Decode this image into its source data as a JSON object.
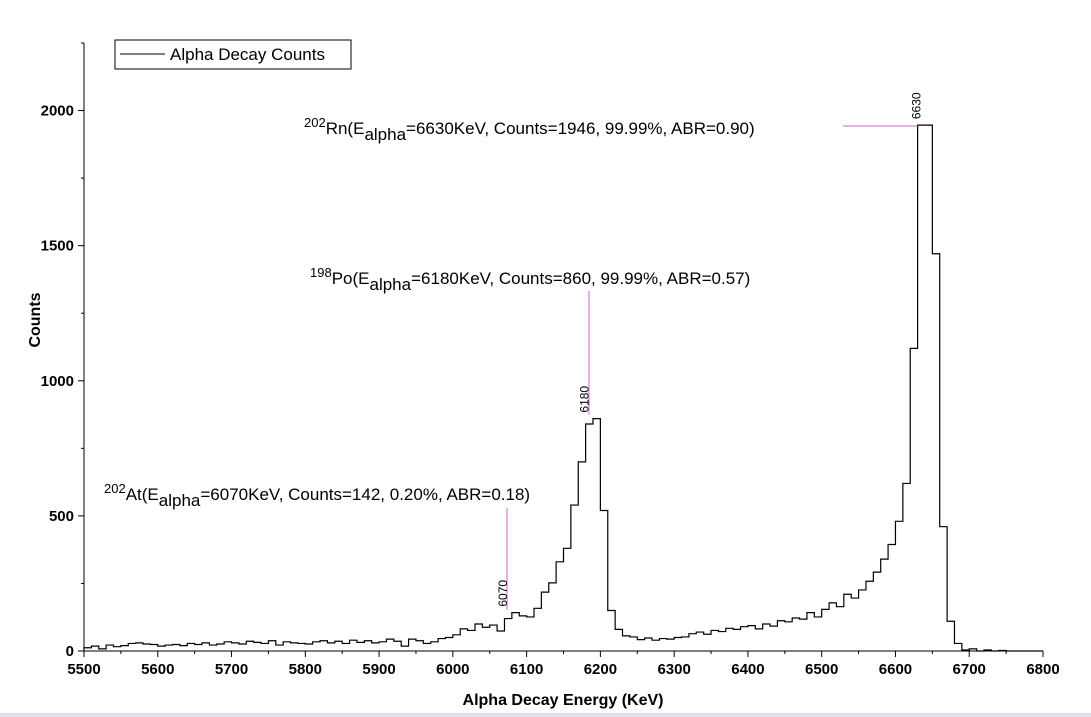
{
  "chart_data": {
    "type": "line",
    "style": "step",
    "xlabel": "Alpha Decay Energy (KeV)",
    "ylabel": "Counts",
    "xlim": [
      5500,
      6800
    ],
    "ylim": [
      0,
      2250
    ],
    "xticks": [
      5500,
      5600,
      5700,
      5800,
      5900,
      6000,
      6100,
      6200,
      6300,
      6400,
      6500,
      6600,
      6700,
      6800
    ],
    "yticks": [
      0,
      500,
      1000,
      1500,
      2000
    ],
    "grid": false,
    "legend": {
      "position": "top-left",
      "entries": [
        "Alpha Decay Counts"
      ]
    },
    "series": [
      {
        "name": "Alpha Decay Counts",
        "color": "#000000",
        "bin_width": 10,
        "x": [
          5500,
          5510,
          5520,
          5530,
          5540,
          5550,
          5560,
          5570,
          5580,
          5590,
          5600,
          5610,
          5620,
          5630,
          5640,
          5650,
          5660,
          5670,
          5680,
          5690,
          5700,
          5710,
          5720,
          5730,
          5740,
          5750,
          5760,
          5770,
          5780,
          5790,
          5800,
          5810,
          5820,
          5830,
          5840,
          5850,
          5860,
          5870,
          5880,
          5890,
          5900,
          5910,
          5920,
          5930,
          5940,
          5950,
          5960,
          5970,
          5980,
          5990,
          6000,
          6010,
          6020,
          6030,
          6040,
          6050,
          6060,
          6070,
          6080,
          6090,
          6100,
          6110,
          6120,
          6130,
          6140,
          6150,
          6160,
          6170,
          6180,
          6190,
          6200,
          6210,
          6220,
          6230,
          6240,
          6250,
          6260,
          6270,
          6280,
          6290,
          6300,
          6310,
          6320,
          6330,
          6340,
          6350,
          6360,
          6370,
          6380,
          6390,
          6400,
          6410,
          6420,
          6430,
          6440,
          6450,
          6460,
          6470,
          6480,
          6490,
          6500,
          6510,
          6520,
          6530,
          6540,
          6550,
          6560,
          6570,
          6580,
          6590,
          6600,
          6610,
          6620,
          6630,
          6640,
          6650,
          6660,
          6670,
          6680,
          6690,
          6700,
          6710,
          6720,
          6730,
          6740,
          6750,
          6760,
          6770,
          6780,
          6790
        ],
        "values": [
          12,
          18,
          8,
          22,
          16,
          20,
          28,
          30,
          26,
          24,
          18,
          22,
          24,
          20,
          28,
          24,
          30,
          22,
          26,
          34,
          30,
          26,
          36,
          32,
          28,
          38,
          22,
          34,
          30,
          28,
          26,
          34,
          38,
          30,
          36,
          28,
          40,
          32,
          38,
          30,
          34,
          44,
          36,
          18,
          44,
          38,
          28,
          34,
          46,
          50,
          60,
          82,
          76,
          100,
          88,
          96,
          74,
          120,
          142,
          130,
          126,
          158,
          218,
          252,
          330,
          380,
          540,
          700,
          840,
          860,
          520,
          150,
          80,
          56,
          52,
          42,
          48,
          40,
          46,
          44,
          50,
          52,
          64,
          70,
          62,
          76,
          72,
          84,
          80,
          90,
          94,
          82,
          100,
          92,
          112,
          108,
          122,
          118,
          142,
          126,
          154,
          178,
          164,
          210,
          196,
          226,
          258,
          292,
          340,
          394,
          480,
          620,
          1120,
          1946,
          1946,
          1470,
          460,
          110,
          28,
          4,
          8,
          0,
          4,
          0,
          2,
          0,
          0,
          0,
          0,
          0
        ]
      }
    ],
    "annotations": [
      {
        "sup": "202",
        "element": "Rn",
        "open": "(E",
        "sub": "alpha",
        "rest": "=6630KeV, Counts=1946, 99.99%, ABR=0.90)",
        "peak_x": 6630,
        "peak_y": 1946,
        "peak_label": "6630",
        "leader": "horizontal"
      },
      {
        "sup": "198",
        "element": "Po",
        "open": "(E",
        "sub": "alpha",
        "rest": "=6180KeV, Counts=860, 99.99%, ABR=0.57)",
        "peak_x": 6180,
        "peak_y": 860,
        "peak_label": "6180",
        "leader": "vertical"
      },
      {
        "sup": "202",
        "element": "At",
        "open": "(E",
        "sub": "alpha",
        "rest": "=6070KeV, Counts=142, 0.20%, ABR=0.18)",
        "peak_x": 6070,
        "peak_y": 142,
        "peak_label": "6070",
        "leader": "vertical"
      }
    ],
    "leader_color": "#cc66cc"
  }
}
